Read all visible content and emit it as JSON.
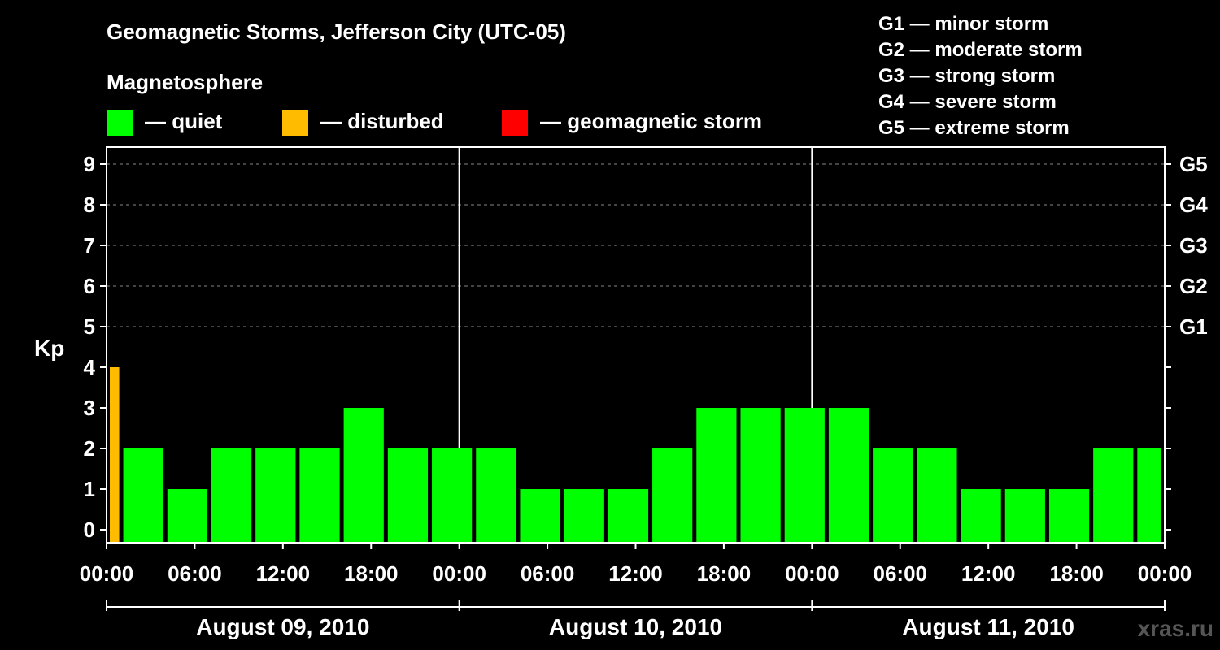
{
  "chart_data": {
    "type": "bar",
    "title": "Geomagnetic Storms, Jefferson City (UTC-05)",
    "ylabel": "Kp",
    "ylim": [
      0,
      9
    ],
    "yticks": [
      "0",
      "1",
      "2",
      "3",
      "4",
      "5",
      "6",
      "7",
      "8",
      "9"
    ],
    "right_axis": [
      {
        "kp": 5,
        "label": "G1"
      },
      {
        "kp": 6,
        "label": "G2"
      },
      {
        "kp": 7,
        "label": "G3"
      },
      {
        "kp": 8,
        "label": "G4"
      },
      {
        "kp": 9,
        "label": "G5"
      }
    ],
    "xticks": [
      "00:00",
      "06:00",
      "12:00",
      "18:00",
      "00:00",
      "06:00",
      "12:00",
      "18:00",
      "00:00",
      "06:00",
      "12:00",
      "18:00",
      "00:00"
    ],
    "days": [
      "August 09, 2010",
      "August 10, 2010",
      "August 11, 2010"
    ],
    "hours_per_bar": 3,
    "values": [
      4,
      2,
      1,
      2,
      2,
      2,
      3,
      2,
      2,
      2,
      1,
      1,
      1,
      2,
      3,
      3,
      3,
      3,
      2,
      2,
      1,
      1,
      1,
      2,
      2
    ],
    "first_bar_partial": true,
    "colors": {
      "quiet": "#00ff00",
      "disturbed": "#ffbb00",
      "storm": "#ff0000"
    }
  },
  "legend": {
    "heading": "Magnetosphere",
    "items": [
      {
        "label": "— quiet",
        "color": "#00ff00"
      },
      {
        "label": "— disturbed",
        "color": "#ffbb00"
      },
      {
        "label": "— geomagnetic storm",
        "color": "#ff0000"
      }
    ]
  },
  "storm_scale": [
    "G1 — minor storm",
    "G2 — moderate storm",
    "G3 — strong storm",
    "G4 — severe storm",
    "G5 — extreme storm"
  ],
  "credit": "xras.ru"
}
